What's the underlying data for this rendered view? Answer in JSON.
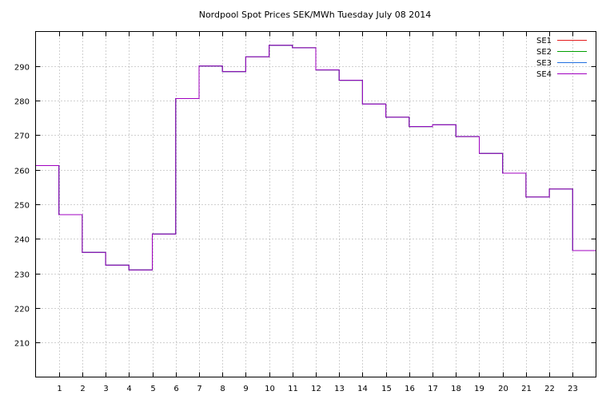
{
  "chart_data": {
    "type": "line",
    "step": true,
    "title": "Nordpool Spot Prices SEK/MWh Tuesday July 08 2014",
    "xlabel": "",
    "ylabel": "",
    "xlim": [
      0,
      24
    ],
    "ylim": [
      200,
      300
    ],
    "x_ticks": [
      1,
      2,
      3,
      4,
      5,
      6,
      7,
      8,
      9,
      10,
      11,
      12,
      13,
      14,
      15,
      16,
      17,
      18,
      19,
      20,
      21,
      22,
      23
    ],
    "y_ticks": [
      210,
      220,
      230,
      240,
      250,
      260,
      270,
      280,
      290
    ],
    "grid": true,
    "legend_position": "top-right",
    "x": [
      0,
      1,
      2,
      3,
      4,
      5,
      6,
      7,
      8,
      9,
      10,
      11,
      12,
      13,
      14,
      15,
      16,
      17,
      18,
      19,
      20,
      21,
      22,
      23
    ],
    "series": [
      {
        "name": "SE1",
        "color": "#e41a1c",
        "values": [
          261.2,
          247.0,
          236.1,
          232.4,
          231.0,
          241.4,
          280.6,
          290.0,
          288.4,
          292.7,
          296.0,
          295.3,
          288.9,
          285.9,
          279.0,
          275.2,
          272.5,
          273.0,
          269.6,
          264.7,
          259.0,
          252.1,
          254.4,
          236.6
        ]
      },
      {
        "name": "SE2",
        "color": "#00a000",
        "values": [
          261.2,
          247.0,
          236.1,
          232.4,
          231.0,
          241.4,
          280.6,
          290.0,
          288.4,
          292.7,
          296.0,
          295.3,
          288.9,
          285.9,
          279.0,
          275.2,
          272.5,
          273.0,
          269.6,
          264.7,
          259.0,
          252.1,
          254.4,
          236.6
        ]
      },
      {
        "name": "SE3",
        "color": "#1f6fe0",
        "values": [
          261.2,
          247.0,
          236.1,
          232.4,
          231.0,
          241.4,
          280.6,
          290.0,
          288.4,
          292.7,
          296.0,
          295.3,
          288.9,
          285.9,
          279.0,
          275.2,
          272.5,
          273.0,
          269.6,
          264.7,
          259.0,
          252.1,
          254.4,
          236.6
        ]
      },
      {
        "name": "SE4",
        "color": "#a000c0",
        "values": [
          261.2,
          247.0,
          236.1,
          232.4,
          231.0,
          241.4,
          280.6,
          290.0,
          288.4,
          292.7,
          296.0,
          295.3,
          288.9,
          285.9,
          279.0,
          275.2,
          272.5,
          273.0,
          269.6,
          264.7,
          259.0,
          252.1,
          254.4,
          236.6
        ]
      }
    ]
  }
}
